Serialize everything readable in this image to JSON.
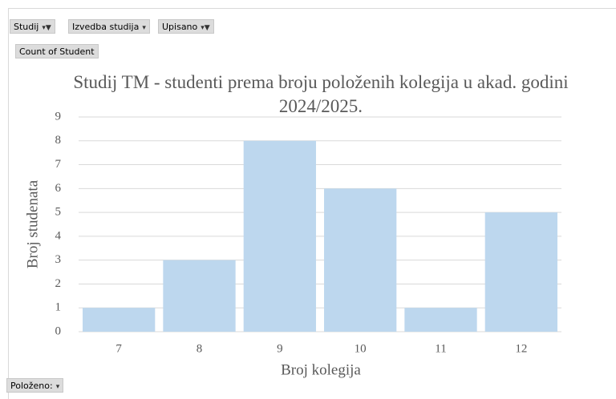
{
  "field_buttons": [
    "Studij",
    "Izvedba studija",
    "Upisano"
  ],
  "value_button": "Count of Student",
  "axis_button": "Položeno:",
  "chart_data": {
    "type": "bar",
    "title": "Studij TM - studenti prema broju položenih kolegija u akad. godini 2024/2025.",
    "xlabel": "Broj kolegija",
    "ylabel": "Broj studenata",
    "categories": [
      "7",
      "8",
      "9",
      "10",
      "11",
      "12"
    ],
    "values": [
      1,
      3,
      8,
      6,
      1,
      5
    ],
    "color": "#bdd7ee",
    "ylim": [
      0,
      9
    ],
    "yticks": [
      0,
      1,
      2,
      3,
      4,
      5,
      6,
      7,
      8,
      9
    ],
    "grid": true
  }
}
